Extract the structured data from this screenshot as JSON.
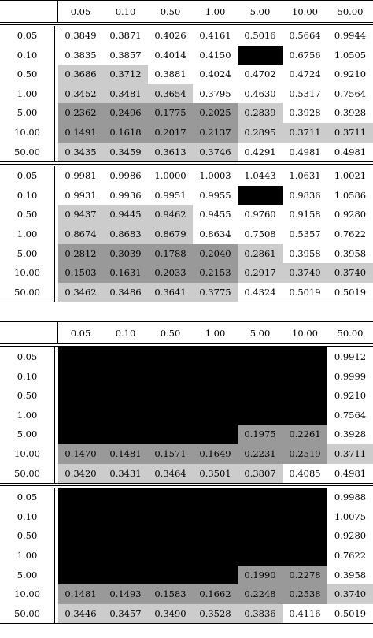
{
  "columns": [
    "0.05",
    "0.10",
    "0.50",
    "1.00",
    "5.00",
    "10.00",
    "50.00"
  ],
  "rows": [
    "0.05",
    "0.10",
    "0.50",
    "1.00",
    "5.00",
    "10.00",
    "50.00"
  ],
  "colors": {
    "dark": "#999999",
    "light": "#cccccc",
    "white": "#ffffff",
    "redacted": "#000000"
  },
  "tables": [
    {
      "name": "table-1",
      "blocks": [
        {
          "values": [
            [
              "0.3849",
              "0.3871",
              "0.4026",
              "0.4161",
              "0.5016",
              "0.5664",
              "0.9944"
            ],
            [
              "0.3835",
              "0.3857",
              "0.4014",
              "0.4150",
              "",
              "0.6756",
              "1.0505"
            ],
            [
              "0.3686",
              "0.3712",
              "0.3881",
              "0.4024",
              "0.4702",
              "0.4724",
              "0.9210"
            ],
            [
              "0.3452",
              "0.3481",
              "0.3654",
              "0.3795",
              "0.4630",
              "0.5317",
              "0.7564"
            ],
            [
              "0.2362",
              "0.2496",
              "0.1775",
              "0.2025",
              "0.2839",
              "0.3928",
              "0.3928"
            ],
            [
              "0.1491",
              "0.1618",
              "0.2017",
              "0.2137",
              "0.2895",
              "0.3711",
              "0.3711"
            ],
            [
              "0.3435",
              "0.3459",
              "0.3613",
              "0.3746",
              "0.4291",
              "0.4981",
              "0.4981"
            ]
          ],
          "shade": [
            "wwwwwww",
            "wwwwxww",
            "LLwwwww",
            "LLLwwww",
            "DDDDLww",
            "DDDDLLL",
            "LLLLwww"
          ]
        },
        {
          "values": [
            [
              "0.9981",
              "0.9986",
              "1.0000",
              "1.0003",
              "1.0443",
              "1.0631",
              "1.0021"
            ],
            [
              "0.9931",
              "0.9936",
              "0.9951",
              "0.9955",
              "",
              "0.9836",
              "1.0586"
            ],
            [
              "0.9437",
              "0.9445",
              "0.9462",
              "0.9455",
              "0.9760",
              "0.9158",
              "0.9280"
            ],
            [
              "0.8674",
              "0.8683",
              "0.8679",
              "0.8634",
              "0.7508",
              "0.5357",
              "0.7622"
            ],
            [
              "0.2812",
              "0.3039",
              "0.1788",
              "0.2040",
              "0.2861",
              "0.3958",
              "0.3958"
            ],
            [
              "0.1503",
              "0.1631",
              "0.2033",
              "0.2153",
              "0.2917",
              "0.3740",
              "0.3740"
            ],
            [
              "0.3462",
              "0.3486",
              "0.3641",
              "0.3775",
              "0.4324",
              "0.5019",
              "0.5019"
            ]
          ],
          "shade": [
            "wwwwwww",
            "wwwwxww",
            "LLLwwww",
            "LLLwwww",
            "DDDDLww",
            "DDDDLLL",
            "LLLLwww"
          ]
        }
      ]
    },
    {
      "name": "table-2",
      "blocks": [
        {
          "values": [
            [
              "",
              "",
              "",
              "",
              "",
              "",
              "0.9912"
            ],
            [
              "",
              "",
              "",
              "",
              "",
              "",
              "0.9999"
            ],
            [
              "",
              "",
              "",
              "",
              "",
              "",
              "0.9210"
            ],
            [
              "",
              "",
              "",
              "",
              "",
              "",
              "0.7564"
            ],
            [
              "",
              "",
              "",
              "",
              "0.1975",
              "0.2261",
              "0.3928"
            ],
            [
              "0.1470",
              "0.1481",
              "0.1571",
              "0.1649",
              "0.2231",
              "0.2519",
              "0.3711"
            ],
            [
              "0.3420",
              "0.3431",
              "0.3464",
              "0.3501",
              "0.3807",
              "0.4085",
              "0.4981"
            ]
          ],
          "shade": [
            "xxxxxxw",
            "xxxxxxw",
            "xxxxxxw",
            "xxxxxxw",
            "xxxxDDw",
            "DDDDDDL",
            "LLLLLww"
          ]
        },
        {
          "values": [
            [
              "",
              "",
              "",
              "",
              "",
              "",
              "0.9988"
            ],
            [
              "",
              "",
              "",
              "",
              "",
              "",
              "1.0075"
            ],
            [
              "",
              "",
              "",
              "",
              "",
              "",
              "0.9280"
            ],
            [
              "",
              "",
              "",
              "",
              "",
              "",
              "0.7622"
            ],
            [
              "",
              "",
              "",
              "",
              "0.1990",
              "0.2278",
              "0.3958"
            ],
            [
              "0.1481",
              "0.1493",
              "0.1583",
              "0.1662",
              "0.2248",
              "0.2538",
              "0.3740"
            ],
            [
              "0.3446",
              "0.3457",
              "0.3490",
              "0.3528",
              "0.3836",
              "0.4116",
              "0.5019"
            ]
          ],
          "shade": [
            "xxxxxxw",
            "xxxxxxw",
            "xxxxxxw",
            "xxxxxxw",
            "xxxxDDw",
            "DDDDDDL",
            "LLLLLww"
          ]
        }
      ]
    }
  ]
}
